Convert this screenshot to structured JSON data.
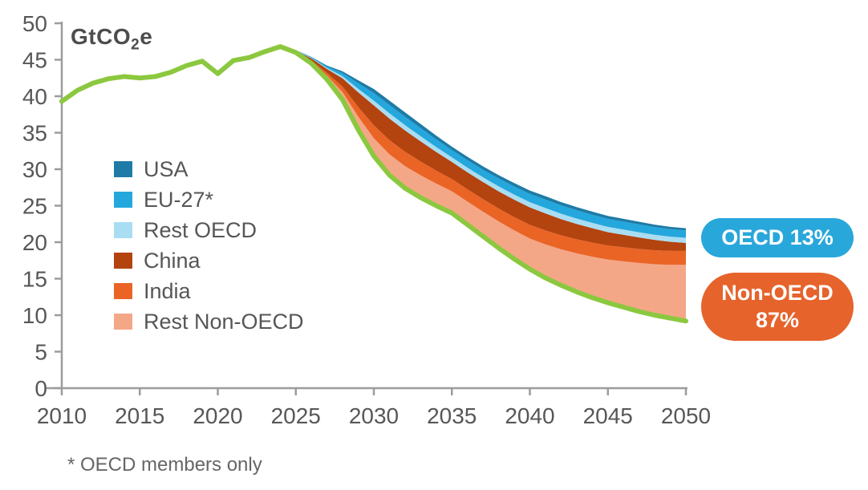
{
  "chart": {
    "title": {
      "pre": "GtCO",
      "sub": "2",
      "post": "e"
    },
    "footnote": "* OECD members only"
  },
  "legend": {
    "items": [
      {
        "label": "USA",
        "color": "#1e7ba6"
      },
      {
        "label": "EU-27*",
        "color": "#24a7dc"
      },
      {
        "label": "Rest OECD",
        "color": "#a9ddf2"
      },
      {
        "label": "China",
        "color": "#b3430f"
      },
      {
        "label": "India",
        "color": "#ea6426"
      },
      {
        "label": "Rest Non-OECD",
        "color": "#f4a787"
      }
    ]
  },
  "badges": {
    "oecd": {
      "text": "OECD 13%",
      "color": "#28a7db"
    },
    "non_oecd": {
      "line1": "Non-OECD",
      "line2": "87%",
      "color": "#e6632c"
    }
  },
  "chart_data": {
    "type": "area",
    "title": "GtCO2e",
    "ylabel": "GtCO2e",
    "xlim": [
      2010,
      2050
    ],
    "ylim": [
      0,
      50
    ],
    "y_ticks": [
      0,
      5,
      10,
      15,
      20,
      25,
      30,
      35,
      40,
      45,
      50
    ],
    "x_ticks": [
      2010,
      2015,
      2020,
      2025,
      2030,
      2035,
      2040,
      2045,
      2050
    ],
    "grid": false,
    "legend_position": "upper-left-inside",
    "axis_color": "#9c9c9c",
    "tick_label_color": "#575757",
    "pathway_line": {
      "color": "#8cc83f",
      "year_start": 2010,
      "year_step": 1,
      "values": [
        39.3,
        40.8,
        41.8,
        42.4,
        42.7,
        42.5,
        42.7,
        43.3,
        44.2,
        44.8,
        43.1,
        44.9,
        45.3,
        46.1,
        46.8,
        46.0,
        44.5,
        42.3,
        39.5,
        35.4,
        31.8,
        29.2,
        27.4,
        26.1,
        25.0,
        24.0,
        22.4,
        20.8,
        19.2,
        17.7,
        16.3,
        15.1,
        14.1,
        13.2,
        12.4,
        11.7,
        11.1,
        10.5,
        10.0,
        9.6,
        9.2
      ]
    },
    "stacked_wedges": {
      "year_start": 2024,
      "year_step": 1,
      "stack_base": "pathway_line",
      "series": [
        {
          "name": "USA",
          "color": "#1e7ba6",
          "values": [
            0,
            0.02,
            0.05,
            0.12,
            0.24,
            0.41,
            0.56,
            0.6,
            0.6,
            0.56,
            0.52,
            0.47,
            0.47,
            0.46,
            0.47,
            0.47,
            0.46,
            0.46,
            0.45,
            0.43,
            0.42,
            0.4,
            0.38,
            0.37,
            0.34,
            0.32,
            0.3
          ]
        },
        {
          "name": "EU-27*",
          "color": "#24a7dc",
          "values": [
            0,
            0.03,
            0.1,
            0.21,
            0.44,
            0.76,
            1.03,
            1.14,
            1.15,
            1.11,
            1.05,
            0.99,
            1.01,
            1.03,
            1.07,
            1.11,
            1.14,
            1.16,
            1.15,
            1.14,
            1.12,
            1.1,
            1.09,
            1.07,
            1.05,
            1.02,
            1.0
          ]
        },
        {
          "name": "Rest OECD",
          "color": "#a9ddf2",
          "values": [
            0,
            0.02,
            0.06,
            0.13,
            0.28,
            0.48,
            0.65,
            0.72,
            0.73,
            0.7,
            0.67,
            0.63,
            0.64,
            0.65,
            0.68,
            0.7,
            0.72,
            0.74,
            0.74,
            0.74,
            0.73,
            0.73,
            0.72,
            0.72,
            0.71,
            0.7,
            0.7
          ]
        },
        {
          "name": "China",
          "color": "#b3430f",
          "values": [
            0,
            0.09,
            0.27,
            0.56,
            1.15,
            2.01,
            2.72,
            2.94,
            2.92,
            2.76,
            2.55,
            2.35,
            2.33,
            2.34,
            2.36,
            2.38,
            2.39,
            2.33,
            2.21,
            2.1,
            1.98,
            1.83,
            1.7,
            1.56,
            1.41,
            1.26,
            1.1
          ]
        },
        {
          "name": "India",
          "color": "#ea6426",
          "values": [
            0,
            0.06,
            0.17,
            0.37,
            0.76,
            1.32,
            1.78,
            1.96,
            1.97,
            1.9,
            1.78,
            1.67,
            1.69,
            1.72,
            1.77,
            1.82,
            1.87,
            1.91,
            1.92,
            1.93,
            1.93,
            1.92,
            1.93,
            1.93,
            1.92,
            1.9,
            1.91
          ]
        },
        {
          "name": "Rest Non-OECD",
          "color": "#f4a787",
          "values": [
            0,
            0.08,
            0.24,
            0.51,
            1.04,
            1.81,
            2.45,
            2.84,
            3.02,
            3.06,
            3.03,
            2.98,
            3.16,
            3.38,
            3.64,
            3.92,
            4.2,
            4.6,
            4.93,
            5.27,
            5.61,
            5.92,
            6.28,
            6.65,
            6.98,
            7.3,
            7.7
          ]
        }
      ]
    },
    "annotations": [
      "OECD 13%",
      "Non-OECD 87%"
    ]
  }
}
